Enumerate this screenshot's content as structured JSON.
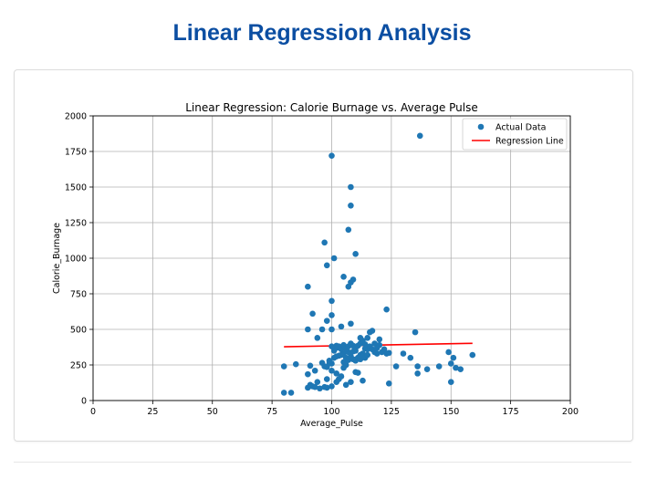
{
  "page": {
    "title": "Linear Regression Analysis"
  },
  "colors": {
    "title": "#0b4ea2",
    "points": "#1f77b4",
    "regression": "#ff0000"
  },
  "chart_data": {
    "type": "scatter",
    "title": "Linear Regression: Calorie Burnage vs. Average Pulse",
    "xlabel": "Average_Pulse",
    "ylabel": "Calorie_Burnage",
    "xlim": [
      0,
      200
    ],
    "ylim": [
      0,
      2000
    ],
    "xticks": [
      0,
      25,
      50,
      75,
      100,
      125,
      150,
      175,
      200
    ],
    "yticks": [
      0,
      250,
      500,
      750,
      1000,
      1250,
      1500,
      1750,
      2000
    ],
    "grid": true,
    "legend_position": "top-right",
    "series": [
      {
        "name": "Actual Data",
        "kind": "scatter",
        "color": "#1f77b4",
        "points": [
          [
            80,
            55
          ],
          [
            83,
            55
          ],
          [
            80,
            240
          ],
          [
            85,
            255
          ],
          [
            90,
            90
          ],
          [
            91,
            110
          ],
          [
            92,
            100
          ],
          [
            93,
            95
          ],
          [
            90,
            185
          ],
          [
            91,
            245
          ],
          [
            93,
            210
          ],
          [
            94,
            130
          ],
          [
            95,
            85
          ],
          [
            96,
            265
          ],
          [
            97,
            240
          ],
          [
            98,
            150
          ],
          [
            98,
            235
          ],
          [
            99,
            280
          ],
          [
            99,
            260
          ],
          [
            100,
            210
          ],
          [
            100,
            260
          ],
          [
            101,
            300
          ],
          [
            102,
            310
          ],
          [
            103,
            315
          ],
          [
            104,
            320
          ],
          [
            105,
            330
          ],
          [
            106,
            300
          ],
          [
            107,
            340
          ],
          [
            108,
            310
          ],
          [
            109,
            345
          ],
          [
            110,
            350
          ],
          [
            111,
            300
          ],
          [
            112,
            320
          ],
          [
            113,
            330
          ],
          [
            114,
            365
          ],
          [
            115,
            360
          ],
          [
            116,
            380
          ],
          [
            117,
            360
          ],
          [
            118,
            400
          ],
          [
            119,
            370
          ],
          [
            120,
            390
          ],
          [
            121,
            340
          ],
          [
            122,
            360
          ],
          [
            123,
            330
          ],
          [
            124,
            335
          ],
          [
            101,
            350
          ],
          [
            102,
            370
          ],
          [
            103,
            380
          ],
          [
            104,
            360
          ],
          [
            105,
            390
          ],
          [
            106,
            365
          ],
          [
            107,
            380
          ],
          [
            108,
            400
          ],
          [
            109,
            385
          ],
          [
            110,
            370
          ],
          [
            111,
            385
          ],
          [
            112,
            400
          ],
          [
            113,
            420
          ],
          [
            114,
            395
          ],
          [
            115,
            440
          ],
          [
            116,
            480
          ],
          [
            117,
            490
          ],
          [
            101,
            370
          ],
          [
            102,
            385
          ],
          [
            100,
            380
          ],
          [
            105,
            270
          ],
          [
            106,
            250
          ],
          [
            107,
            285
          ],
          [
            108,
            300
          ],
          [
            109,
            290
          ],
          [
            110,
            280
          ],
          [
            111,
            300
          ],
          [
            112,
            290
          ],
          [
            113,
            310
          ],
          [
            114,
            300
          ],
          [
            115,
            320
          ],
          [
            102,
            190
          ],
          [
            103,
            150
          ],
          [
            104,
            170
          ],
          [
            105,
            230
          ],
          [
            106,
            110
          ],
          [
            108,
            130
          ],
          [
            110,
            200
          ],
          [
            111,
            195
          ],
          [
            113,
            140
          ],
          [
            119,
            330
          ],
          [
            120,
            430
          ],
          [
            118,
            340
          ],
          [
            100,
            100
          ],
          [
            98,
            90
          ],
          [
            97,
            95
          ],
          [
            102,
            130
          ],
          [
            90,
            500
          ],
          [
            94,
            440
          ],
          [
            96,
            500
          ],
          [
            100,
            500
          ],
          [
            104,
            520
          ],
          [
            108,
            540
          ],
          [
            112,
            440
          ],
          [
            98,
            560
          ],
          [
            92,
            610
          ],
          [
            90,
            800
          ],
          [
            100,
            600
          ],
          [
            100,
            700
          ],
          [
            105,
            870
          ],
          [
            108,
            830
          ],
          [
            107,
            800
          ],
          [
            109,
            850
          ],
          [
            101,
            1000
          ],
          [
            98,
            950
          ],
          [
            97,
            1110
          ],
          [
            107,
            1200
          ],
          [
            108,
            1370
          ],
          [
            108,
            1500
          ],
          [
            100,
            1720
          ],
          [
            137,
            1860
          ],
          [
            110,
            1030
          ],
          [
            123,
            640
          ],
          [
            135,
            480
          ],
          [
            133,
            300
          ],
          [
            127,
            240
          ],
          [
            136,
            240
          ],
          [
            136,
            190
          ],
          [
            140,
            220
          ],
          [
            145,
            240
          ],
          [
            149,
            340
          ],
          [
            150,
            260
          ],
          [
            150,
            130
          ],
          [
            151,
            300
          ],
          [
            152,
            230
          ],
          [
            154,
            220
          ],
          [
            159,
            320
          ],
          [
            124,
            120
          ],
          [
            130,
            330
          ],
          [
            118,
            350
          ]
        ]
      },
      {
        "name": "Regression Line",
        "kind": "line",
        "color": "#ff0000",
        "points": [
          [
            80,
            378
          ],
          [
            159,
            402
          ]
        ]
      }
    ]
  }
}
